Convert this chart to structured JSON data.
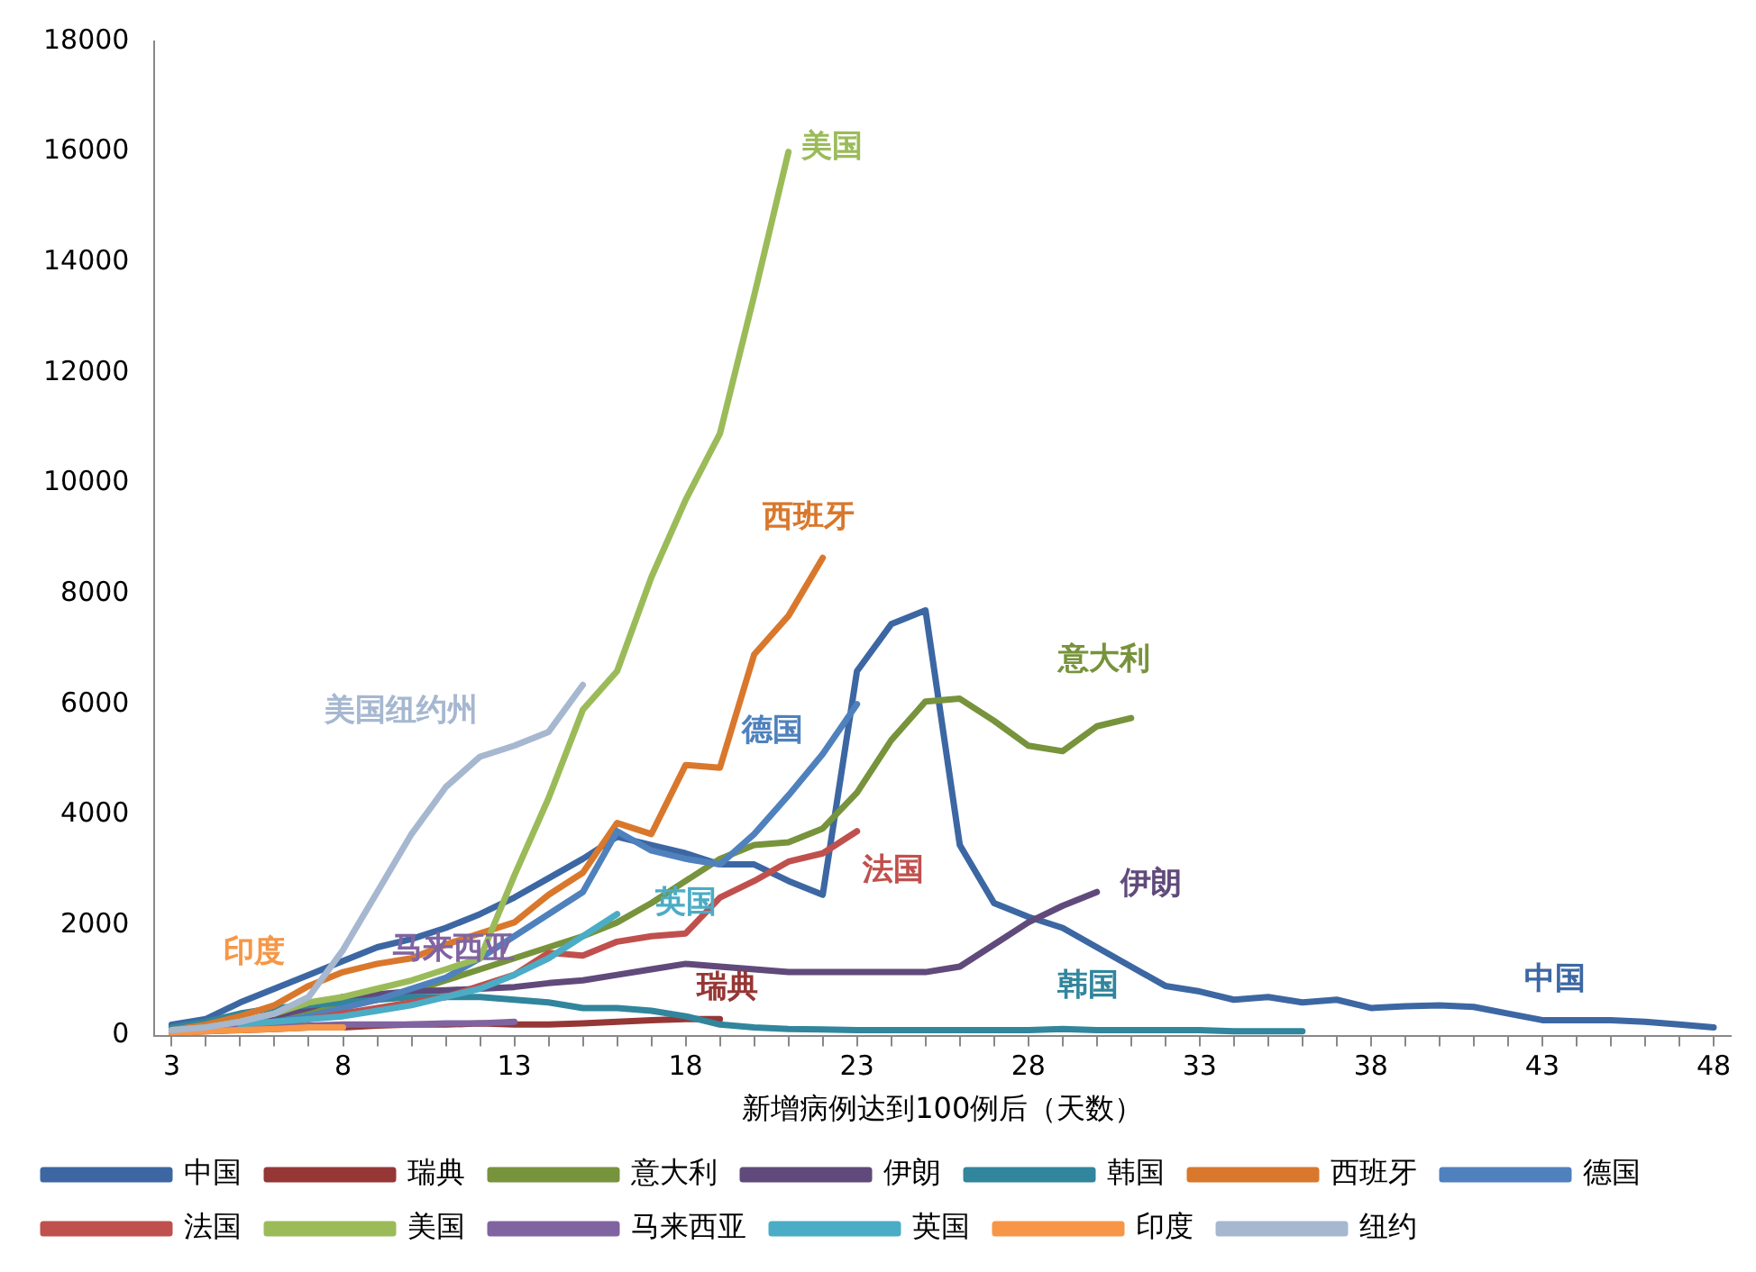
{
  "chart_data": {
    "type": "line",
    "xlabel": "新增病例达到100例后（天数）",
    "xlim": [
      2.5,
      48.5
    ],
    "xticks": [
      3,
      {
        "value": 4,
        "label": null
      },
      {
        "value": 5,
        "label": null
      },
      {
        "value": 6,
        "label": null
      },
      {
        "value": 7,
        "label": null
      },
      8,
      {
        "value": 9,
        "label": null
      },
      {
        "value": 10,
        "label": null
      },
      {
        "value": 11,
        "label": null
      },
      {
        "value": 12,
        "label": null
      },
      13,
      {
        "value": 14,
        "label": null
      },
      {
        "value": 15,
        "label": null
      },
      {
        "value": 16,
        "label": null
      },
      {
        "value": 17,
        "label": null
      },
      18,
      {
        "value": 19,
        "label": null
      },
      {
        "value": 20,
        "label": null
      },
      {
        "value": 21,
        "label": null
      },
      {
        "value": 22,
        "label": null
      },
      23,
      {
        "value": 24,
        "label": null
      },
      {
        "value": 25,
        "label": null
      },
      {
        "value": 26,
        "label": null
      },
      {
        "value": 27,
        "label": null
      },
      28,
      {
        "value": 29,
        "label": null
      },
      {
        "value": 30,
        "label": null
      },
      {
        "value": 31,
        "label": null
      },
      {
        "value": 32,
        "label": null
      },
      33,
      {
        "value": 34,
        "label": null
      },
      {
        "value": 35,
        "label": null
      },
      {
        "value": 36,
        "label": null
      },
      {
        "value": 37,
        "label": null
      },
      38,
      {
        "value": 39,
        "label": null
      },
      {
        "value": 40,
        "label": null
      },
      {
        "value": 41,
        "label": null
      },
      {
        "value": 42,
        "label": null
      },
      43,
      {
        "value": 44,
        "label": null
      },
      {
        "value": 45,
        "label": null
      },
      {
        "value": 46,
        "label": null
      },
      {
        "value": 47,
        "label": null
      },
      48
    ],
    "ylim": [
      0,
      18000
    ],
    "yticks": [
      0,
      2000,
      4000,
      6000,
      8000,
      10000,
      12000,
      14000,
      16000,
      18000
    ],
    "grid": false,
    "legend": "bottom",
    "marker": "none",
    "line_style": "solid",
    "series": [
      {
        "name": "中国",
        "color": "#3c67a3",
        "x": [
          3,
          4,
          5,
          6,
          7,
          8,
          9,
          10,
          11,
          12,
          13,
          14,
          15,
          16,
          17,
          18,
          19,
          20,
          21,
          22,
          23,
          24,
          25,
          26,
          27,
          28,
          29,
          30,
          31,
          32,
          33,
          34,
          35,
          36,
          37,
          38,
          39,
          40,
          41,
          42,
          43,
          44,
          45,
          46,
          47,
          48
        ],
        "values": [
          200,
          300,
          600,
          850,
          1100,
          1350,
          1600,
          1750,
          1950,
          2200,
          2500,
          2850,
          3200,
          3600,
          3450,
          3300,
          3100,
          3100,
          2800,
          2550,
          6600,
          7450,
          7700,
          3450,
          2400,
          2150,
          1950,
          1600,
          1250,
          900,
          800,
          650,
          700,
          600,
          650,
          500,
          530,
          550,
          520,
          400,
          280,
          280,
          280,
          250,
          200,
          150
        ]
      },
      {
        "name": "瑞典",
        "color": "#953735",
        "x": [
          3,
          4,
          5,
          6,
          7,
          8,
          9,
          10,
          11,
          12,
          13,
          14,
          15,
          16,
          17,
          18,
          19
        ],
        "values": [
          50,
          80,
          100,
          120,
          150,
          150,
          180,
          200,
          200,
          220,
          200,
          200,
          220,
          250,
          280,
          300,
          300
        ]
      },
      {
        "name": "意大利",
        "color": "#77933c",
        "x": [
          3,
          4,
          5,
          6,
          7,
          8,
          9,
          10,
          11,
          12,
          13,
          14,
          15,
          16,
          17,
          18,
          19,
          20,
          21,
          22,
          23,
          24,
          25,
          26,
          27,
          28,
          29,
          30,
          31
        ],
        "values": [
          100,
          150,
          250,
          350,
          450,
          550,
          650,
          800,
          1000,
          1200,
          1400,
          1600,
          1800,
          2050,
          2400,
          2800,
          3200,
          3450,
          3500,
          3750,
          4400,
          5350,
          6050,
          6100,
          5700,
          5250,
          5150,
          5600,
          5750
        ]
      },
      {
        "name": "伊朗",
        "color": "#604a7b",
        "x": [
          3,
          4,
          5,
          6,
          7,
          8,
          9,
          10,
          11,
          12,
          13,
          14,
          15,
          16,
          17,
          18,
          19,
          20,
          21,
          22,
          23,
          24,
          25,
          26,
          27,
          28,
          29,
          30
        ],
        "values": [
          100,
          150,
          250,
          350,
          500,
          700,
          750,
          800,
          820,
          850,
          880,
          950,
          1000,
          1100,
          1200,
          1300,
          1250,
          1200,
          1150,
          1150,
          1150,
          1150,
          1150,
          1250,
          1650,
          2050,
          2350,
          2600
        ]
      },
      {
        "name": "韩国",
        "color": "#31859c",
        "x": [
          3,
          4,
          5,
          6,
          7,
          8,
          9,
          10,
          11,
          12,
          13,
          14,
          15,
          16,
          17,
          18,
          19,
          20,
          21,
          22,
          23,
          24,
          25,
          26,
          27,
          28,
          29,
          30,
          31,
          32,
          33,
          34,
          35,
          36
        ],
        "values": [
          150,
          250,
          400,
          500,
          550,
          600,
          650,
          700,
          700,
          700,
          650,
          600,
          500,
          500,
          450,
          350,
          200,
          150,
          120,
          110,
          100,
          100,
          100,
          100,
          100,
          100,
          120,
          100,
          100,
          100,
          100,
          80,
          80,
          80
        ]
      },
      {
        "name": "西班牙",
        "color": "#d9782c",
        "x": [
          3,
          4,
          5,
          6,
          7,
          8,
          9,
          10,
          11,
          12,
          13,
          14,
          15,
          16,
          17,
          18,
          19,
          20,
          21,
          22
        ],
        "values": [
          100,
          200,
          350,
          550,
          900,
          1150,
          1300,
          1400,
          1650,
          1850,
          2050,
          2550,
          2950,
          3850,
          3650,
          4900,
          4850,
          6900,
          7600,
          8650
        ]
      },
      {
        "name": "德国",
        "color": "#4f81bd",
        "x": [
          3,
          4,
          5,
          6,
          7,
          8,
          9,
          10,
          11,
          12,
          13,
          14,
          15,
          16,
          17,
          18,
          19,
          20,
          21,
          22,
          23
        ],
        "values": [
          100,
          150,
          200,
          250,
          350,
          500,
          650,
          850,
          1050,
          1400,
          1800,
          2200,
          2600,
          3700,
          3350,
          3200,
          3100,
          3650,
          4350,
          5100,
          6000
        ]
      },
      {
        "name": "法国",
        "color": "#c0504d",
        "x": [
          3,
          4,
          5,
          6,
          7,
          8,
          9,
          10,
          11,
          12,
          13,
          14,
          15,
          16,
          17,
          18,
          19,
          20,
          21,
          22,
          23
        ],
        "values": [
          50,
          100,
          150,
          200,
          300,
          400,
          500,
          600,
          700,
          900,
          1100,
          1500,
          1450,
          1700,
          1800,
          1850,
          2500,
          2800,
          3150,
          3300,
          3700
        ]
      },
      {
        "name": "美国",
        "color": "#9bbb59",
        "x": [
          3,
          4,
          5,
          6,
          7,
          8,
          9,
          10,
          11,
          12,
          13,
          14,
          15,
          16,
          17,
          18,
          19,
          20,
          21
        ],
        "values": [
          100,
          150,
          250,
          400,
          600,
          700,
          850,
          1000,
          1200,
          1400,
          2900,
          4300,
          5900,
          6600,
          8300,
          9700,
          10900,
          13400,
          16000
        ]
      },
      {
        "name": "马来西亚",
        "color": "#8064a2",
        "x": [
          3,
          4,
          5,
          6,
          7,
          8,
          9,
          10,
          11,
          12,
          13
        ],
        "values": [
          100,
          120,
          150,
          150,
          180,
          200,
          200,
          200,
          220,
          220,
          250
        ]
      },
      {
        "name": "英国",
        "color": "#4bacc6",
        "x": [
          5,
          6,
          7,
          8,
          9,
          10,
          11,
          12,
          13,
          14,
          15,
          16
        ],
        "values": [
          200,
          250,
          300,
          350,
          450,
          550,
          700,
          850,
          1100,
          1400,
          1800,
          2200
        ]
      },
      {
        "name": "印度",
        "color": "#f79646",
        "x": [
          3,
          4,
          5,
          6,
          7,
          8
        ],
        "values": [
          50,
          80,
          100,
          120,
          150,
          150
        ]
      },
      {
        "name": "纽约",
        "color": "#a6b7d0",
        "x": [
          3,
          4,
          5,
          6,
          7,
          8,
          9,
          10,
          11,
          12,
          13,
          14,
          15
        ],
        "values": [
          100,
          150,
          250,
          400,
          700,
          1550,
          2600,
          3650,
          4500,
          5050,
          5250,
          5500,
          6350
        ]
      }
    ],
    "annotations": [
      {
        "text": "美国",
        "x": 21,
        "y": 16000
      },
      {
        "text": "西班牙",
        "x": 22,
        "y": 8650
      },
      {
        "text": "意大利",
        "x": 31,
        "y": 5750
      },
      {
        "text": "美国纽约州",
        "x": 12,
        "y": 5050
      },
      {
        "text": "德国",
        "x": 23,
        "y": 6000
      },
      {
        "text": "法国",
        "x": 23,
        "y": 3700
      },
      {
        "text": "伊朗",
        "x": 30,
        "y": 2600
      },
      {
        "text": "英国",
        "x": 16,
        "y": 2200
      },
      {
        "text": "印度",
        "x": 3,
        "y": 50
      },
      {
        "text": "马来西亚",
        "x": 13,
        "y": 250
      },
      {
        "text": "瑞典",
        "x": 19,
        "y": 300
      },
      {
        "text": "韩国",
        "x": 30,
        "y": 100
      },
      {
        "text": "中国",
        "x": 44,
        "y": 280
      }
    ]
  }
}
